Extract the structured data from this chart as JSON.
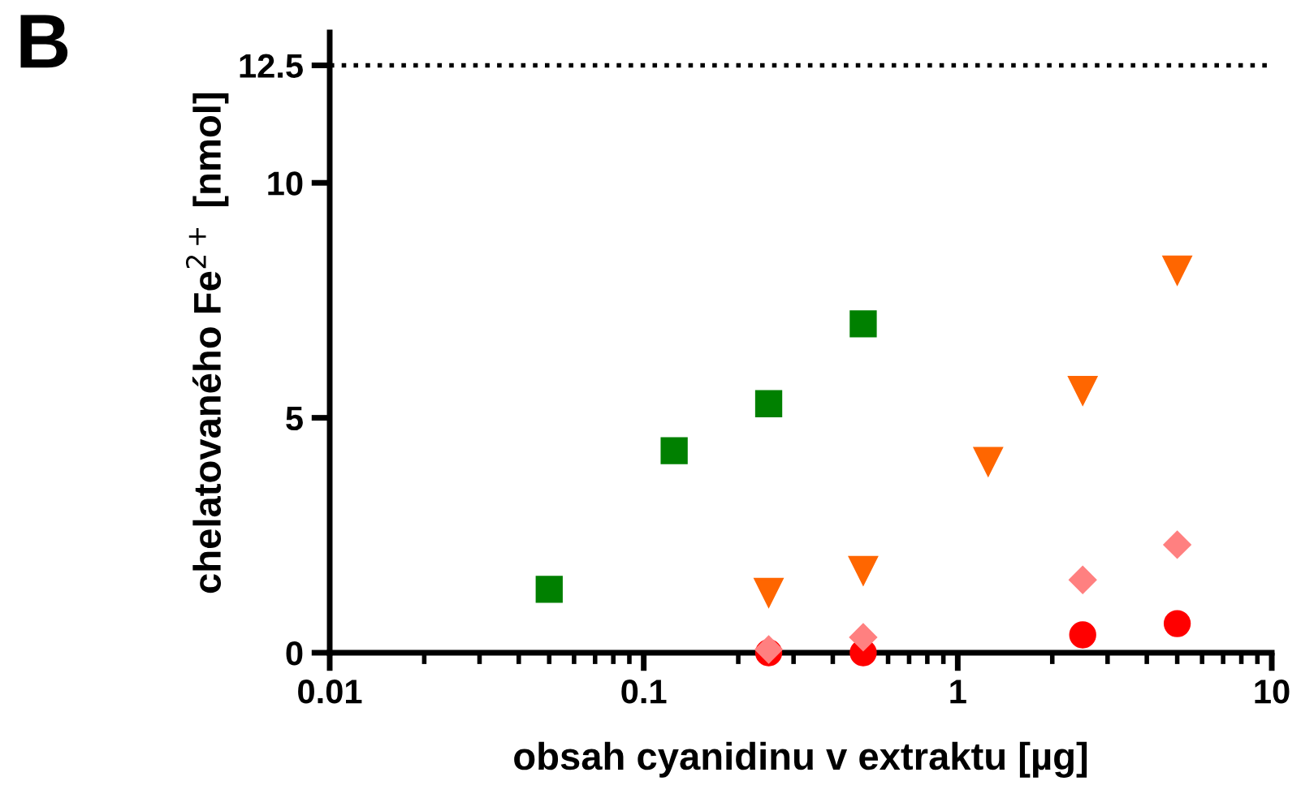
{
  "chart_data": {
    "type": "scatter",
    "xlabel": "obsah cyanidinu v extraktu [µg]",
    "ylabel": "chelatovaného Fe$^{2+}$ [nmol]",
    "annotations": [
      "B"
    ],
    "log": "x",
    "xlim": [
      0.01,
      10
    ],
    "xticks": [
      {
        "value": 0.01,
        "label": "0.01"
      },
      {
        "value": 0.1,
        "label": "0.1"
      },
      {
        "value": 1,
        "label": "1"
      },
      {
        "value": 10,
        "label": "10"
      }
    ],
    "ylim": [
      0,
      13.2
    ],
    "yticks": [
      0,
      5,
      10,
      12.5
    ],
    "grid": false,
    "legend": false,
    "ref_lines": [
      {
        "axis": "y",
        "value": 12.5,
        "color": "#000000",
        "line_style": "dotted"
      }
    ],
    "series": [
      {
        "color": "#008000",
        "marker": "square",
        "x": [
          0.05,
          0.125,
          0.25,
          0.5
        ],
        "values": [
          1.35,
          4.3,
          5.3,
          7.0
        ],
        "errors": [
          null,
          0.15,
          0.25,
          null
        ]
      },
      {
        "color": "#ff6600",
        "marker": "triangle",
        "x": [
          0.25,
          0.5,
          1.25,
          2.5,
          5
        ],
        "values": [
          1.28,
          1.75,
          4.07,
          5.58,
          8.14
        ]
      },
      {
        "color": "#ff0000",
        "marker": "circle",
        "x": [
          0.25,
          0.5,
          2.5,
          5
        ],
        "values": [
          0.0,
          0.0,
          0.38,
          0.62
        ]
      },
      {
        "color": "#ff8080",
        "marker": "diamond",
        "x": [
          0.25,
          0.5,
          2.5,
          5
        ],
        "values": [
          0.07,
          0.33,
          1.55,
          2.3
        ]
      }
    ]
  }
}
